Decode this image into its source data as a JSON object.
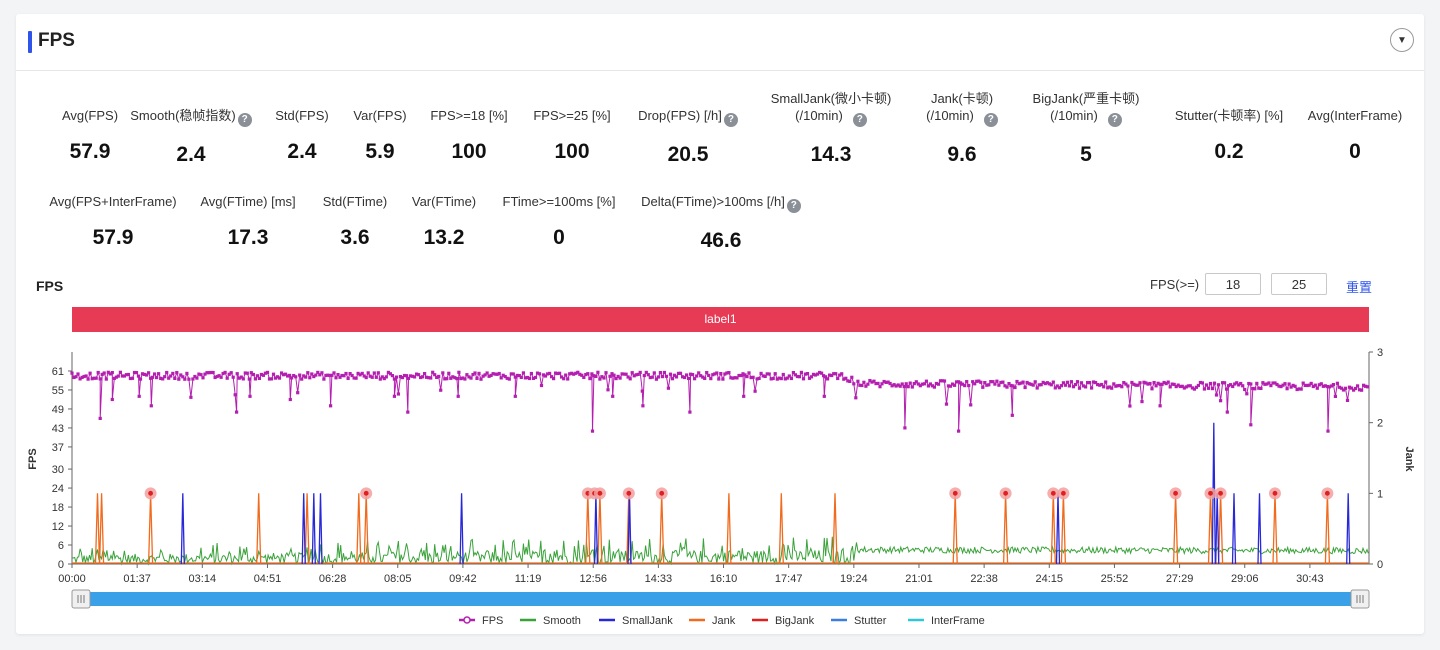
{
  "panel": {
    "title": "FPS",
    "collapse_icon": "chevron-down-icon"
  },
  "stats_row1": [
    {
      "label": "Avg(FPS)",
      "value": "57.9",
      "help": false
    },
    {
      "label": "Smooth(稳帧指数)",
      "value": "2.4",
      "help": true
    },
    {
      "label": "Std(FPS)",
      "value": "2.4",
      "help": false
    },
    {
      "label": "Var(FPS)",
      "value": "5.9",
      "help": false
    },
    {
      "label": "FPS>=18 [%]",
      "value": "100",
      "help": false
    },
    {
      "label": "FPS>=25 [%]",
      "value": "100",
      "help": false
    },
    {
      "label": "Drop(FPS) [/h]",
      "value": "20.5",
      "help": true
    },
    {
      "label": "SmallJank(微小卡顿)",
      "label2": "(/10min)",
      "value": "14.3",
      "help": true
    },
    {
      "label": "Jank(卡顿)",
      "label2": "(/10min)",
      "value": "9.6",
      "help": true
    },
    {
      "label": "BigJank(严重卡顿)",
      "label2": "(/10min)",
      "value": "5",
      "help": true
    },
    {
      "label": "Stutter(卡顿率) [%]",
      "value": "0.2",
      "help": false
    },
    {
      "label": "Avg(InterFrame)",
      "value": "0",
      "help": false
    }
  ],
  "stats_row2": [
    {
      "label": "Avg(FPS+InterFrame)",
      "value": "57.9",
      "help": false
    },
    {
      "label": "Avg(FTime) [ms]",
      "value": "17.3",
      "help": false
    },
    {
      "label": "Std(FTime)",
      "value": "3.6",
      "help": false
    },
    {
      "label": "Var(FTime)",
      "value": "13.2",
      "help": false
    },
    {
      "label": "FTime>=100ms [%]",
      "value": "0",
      "help": false
    },
    {
      "label": "Delta(FTime)>100ms [/h]",
      "value": "46.6",
      "help": true
    }
  ],
  "chart_header": {
    "title": "FPS",
    "threshold_label": "FPS(>=)",
    "threshold1": "18",
    "threshold2": "25",
    "reset_label": "重置"
  },
  "label_band": "label1",
  "colors": {
    "FPS": "#b41fb0",
    "Smooth": "#3aa23a",
    "SmallJank": "#2828d8",
    "Jank": "#f06b1e",
    "BigJank": "#e02020",
    "Stutter": "#3a7ee0",
    "InterFrame": "#2ec7d8",
    "accent": "#2f54eb",
    "label_band": "#e63a55"
  },
  "chart_data": {
    "type": "line",
    "xlabel": "",
    "ylabel": "FPS",
    "y2label": "Jank",
    "yticks": [
      0,
      6,
      12,
      18,
      24,
      30,
      37,
      43,
      49,
      55,
      61
    ],
    "ylim": [
      0,
      67
    ],
    "y2ticks": [
      0,
      1,
      2,
      3
    ],
    "y2lim": [
      0,
      3
    ],
    "xtick_labels": [
      "00:00",
      "01:37",
      "03:14",
      "04:51",
      "06:28",
      "08:05",
      "09:42",
      "11:19",
      "12:56",
      "14:33",
      "16:10",
      "17:47",
      "19:24",
      "21:01",
      "22:38",
      "24:15",
      "25:52",
      "27:29",
      "29:06",
      "30:43"
    ],
    "x_range_seconds": [
      0,
      1931
    ],
    "legend": [
      "FPS",
      "Smooth",
      "SmallJank",
      "Jank",
      "BigJank",
      "Stutter",
      "InterFrame"
    ],
    "legend_position": "bottom",
    "fps_baseline": [
      {
        "t": 0,
        "fps": 59.5
      },
      {
        "t": 1150,
        "fps": 59.5
      },
      {
        "t": 1170,
        "fps": 57
      },
      {
        "t": 1931,
        "fps": 56
      }
    ],
    "fps_dips": [
      {
        "t": 42,
        "fps": 46
      },
      {
        "t": 60,
        "fps": 52
      },
      {
        "t": 100,
        "fps": 53
      },
      {
        "t": 118,
        "fps": 50
      },
      {
        "t": 245,
        "fps": 48
      },
      {
        "t": 265,
        "fps": 53
      },
      {
        "t": 325,
        "fps": 52
      },
      {
        "t": 385,
        "fps": 50
      },
      {
        "t": 480,
        "fps": 53
      },
      {
        "t": 500,
        "fps": 48
      },
      {
        "t": 575,
        "fps": 53
      },
      {
        "t": 660,
        "fps": 53
      },
      {
        "t": 775,
        "fps": 42
      },
      {
        "t": 805,
        "fps": 53
      },
      {
        "t": 850,
        "fps": 50
      },
      {
        "t": 920,
        "fps": 48
      },
      {
        "t": 1000,
        "fps": 53
      },
      {
        "t": 1120,
        "fps": 53
      },
      {
        "t": 1240,
        "fps": 43
      },
      {
        "t": 1320,
        "fps": 42
      },
      {
        "t": 1400,
        "fps": 47
      },
      {
        "t": 1620,
        "fps": 50
      },
      {
        "t": 1720,
        "fps": 48
      },
      {
        "t": 1755,
        "fps": 44
      },
      {
        "t": 1870,
        "fps": 42
      }
    ],
    "smooth_levels": [
      {
        "t": 0,
        "smooth": 3
      },
      {
        "t": 560,
        "smooth": 4
      },
      {
        "t": 1170,
        "smooth": 4.5
      },
      {
        "t": 1931,
        "smooth": 4.2
      }
    ],
    "jank_times": [
      38,
      44,
      117,
      278,
      350,
      427,
      438,
      768,
      786,
      829,
      878,
      978,
      1056,
      1136,
      1315,
      1390,
      1461,
      1476,
      1643,
      1695,
      1710,
      1791,
      1869
    ],
    "jank_value": 1,
    "bigjank_times": [
      117,
      438,
      768,
      778,
      786,
      829,
      878,
      1315,
      1390,
      1461,
      1476,
      1643,
      1695,
      1710,
      1791,
      1869
    ],
    "smalljank": [
      {
        "t": 165,
        "jank": 1
      },
      {
        "t": 345,
        "jank": 1
      },
      {
        "t": 360,
        "jank": 1
      },
      {
        "t": 370,
        "jank": 1
      },
      {
        "t": 580,
        "jank": 1
      },
      {
        "t": 780,
        "jank": 1
      },
      {
        "t": 830,
        "jank": 1
      },
      {
        "t": 1468,
        "jank": 1
      },
      {
        "t": 1700,
        "jank": 2
      },
      {
        "t": 1705,
        "jank": 1
      },
      {
        "t": 1730,
        "jank": 1
      },
      {
        "t": 1768,
        "jank": 1
      },
      {
        "t": 1900,
        "jank": 1
      }
    ]
  },
  "zoom_slider": {
    "start": 0,
    "end": 1
  }
}
